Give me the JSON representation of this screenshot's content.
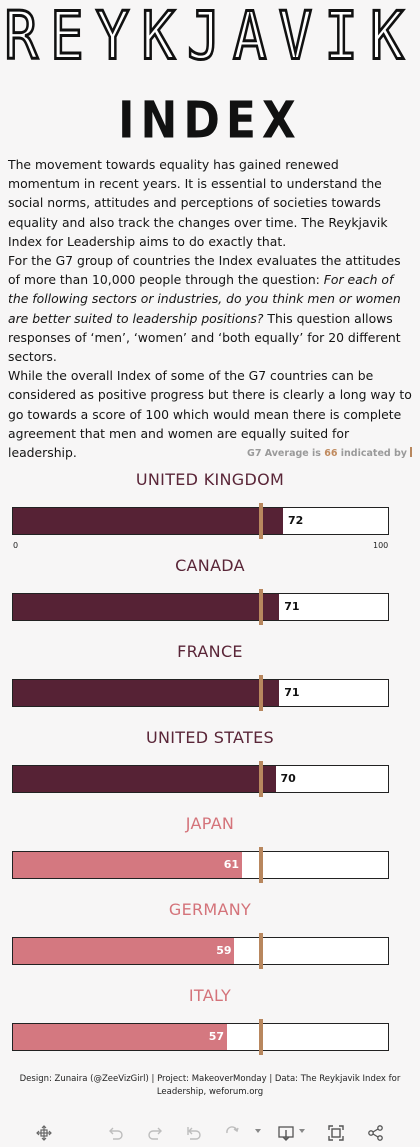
{
  "header": {
    "title": "REYKJAVIK",
    "subtitle": "INDEX"
  },
  "intro": {
    "p1": "The movement towards equality has gained renewed momentum in recent years. It is essential to understand the social norms, attitudes and perceptions of societies towards equality and also track the changes over time. The Reykjavik Index for Leadership aims to do exactly that.",
    "p2_before": "For the G7 group of countries the Index evaluates the attitudes of more than 10,000 people through the question: ",
    "p2_question": "For each of the following sectors or industries, do you think men or women are better suited to leadership positions?",
    "p2_after": " This question allows responses of ‘men’, ‘women’ and ‘both equally’ for 20 different sectors.",
    "p3": "While the overall Index of some of the G7 countries can be considered as positive progress but there is clearly a long way to go towards a score of 100 which would mean there is complete agreement that men and women are equally suited for leadership."
  },
  "avg_note": {
    "prefix": "G7 Average is ",
    "value": "66",
    "suffix": " indicated by"
  },
  "chart_data": {
    "type": "bar",
    "orientation": "horizontal",
    "categories": [
      "UNITED KINGDOM",
      "CANADA",
      "FRANCE",
      "UNITED STATES",
      "JAPAN",
      "GERMANY",
      "ITALY"
    ],
    "values": [
      72,
      71,
      71,
      70,
      61,
      59,
      57
    ],
    "reference_line": {
      "label": "G7 Average",
      "value": 66
    },
    "xlim": [
      0,
      100
    ],
    "x_ticks": [
      "0",
      "100"
    ],
    "colors": {
      "above_average": "#562235",
      "below_average": "#d47880",
      "average_marker": "#b8875e"
    }
  },
  "footer": {
    "credits": "Design: Zunaira (@ZeeVizGirl) | Project: MakeoverMonday | Data: The Reykjavik Index for Leadership, weforum.org"
  },
  "toolbar": {
    "icons": [
      "move-icon",
      "undo-icon",
      "redo-icon",
      "revert-icon",
      "refresh-icon",
      "download-icon",
      "fullscreen-icon",
      "share-icon"
    ]
  }
}
